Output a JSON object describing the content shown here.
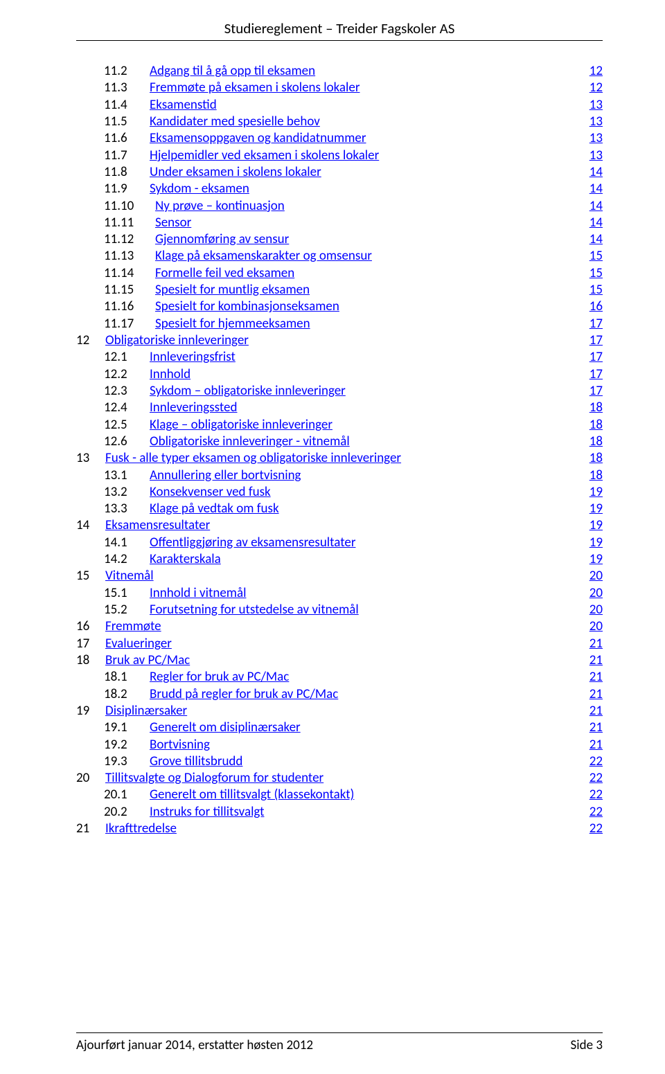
{
  "header_title": "Studiereglement – Treider Fagskoler AS",
  "footer_left": "Ajourført januar 2014, erstatter høsten 2012",
  "footer_right": "Side 3",
  "link_color": "#0000ff",
  "text_color": "#000000",
  "background_color": "#ffffff",
  "font_family": "Calibri",
  "font_size_body": 19,
  "font_size_header": 21,
  "toc": [
    {
      "num": "11.2",
      "label": "Adgang til å gå opp til eksamen",
      "page": "12",
      "level": 1
    },
    {
      "num": "11.3",
      "label": "Fremmøte på eksamen i skolens lokaler",
      "page": "12",
      "level": 1
    },
    {
      "num": "11.4",
      "label": "Eksamenstid",
      "page": "13",
      "level": 1
    },
    {
      "num": "11.5",
      "label": "Kandidater med spesielle behov",
      "page": "13",
      "level": 1
    },
    {
      "num": "11.6",
      "label": "Eksamensoppgaven og kandidatnummer",
      "page": "13",
      "level": 1
    },
    {
      "num": "11.7",
      "label": "Hjelpemidler ved eksamen i skolens lokaler",
      "page": "13",
      "level": 1
    },
    {
      "num": "11.8",
      "label": "Under eksamen i skolens lokaler",
      "page": "14",
      "level": 1
    },
    {
      "num": "11.9",
      "label": "Sykdom - eksamen",
      "page": "14",
      "level": 1
    },
    {
      "num": "11.10",
      "label": "Ny prøve – kontinuasjon",
      "page": "14",
      "level": 2
    },
    {
      "num": "11.11",
      "label": "Sensor",
      "page": "14",
      "level": 2
    },
    {
      "num": "11.12",
      "label": "Gjennomføring av sensur",
      "page": "14",
      "level": 2
    },
    {
      "num": "11.13",
      "label": "Klage på eksamenskarakter og omsensur",
      "page": "15",
      "level": 2
    },
    {
      "num": "11.14",
      "label": "Formelle feil ved eksamen",
      "page": "15",
      "level": 2
    },
    {
      "num": "11.15",
      "label": "Spesielt for muntlig eksamen",
      "page": "15",
      "level": 2
    },
    {
      "num": "11.16",
      "label": "Spesielt for kombinasjonseksamen",
      "page": "16",
      "level": 2
    },
    {
      "num": "11.17",
      "label": "Spesielt for hjemmeeksamen",
      "page": "17",
      "level": 2
    },
    {
      "num": "12",
      "label": "Obligatoriske innleveringer",
      "page": "17",
      "level": 0
    },
    {
      "num": "12.1",
      "label": "Innleveringsfrist",
      "page": "17",
      "level": 1
    },
    {
      "num": "12.2",
      "label": "Innhold",
      "page": "17",
      "level": 1
    },
    {
      "num": "12.3",
      "label": "Sykdom – obligatoriske innleveringer",
      "page": "17",
      "level": 1
    },
    {
      "num": "12.4",
      "label": "Innleveringssted",
      "page": "18",
      "level": 1
    },
    {
      "num": "12.5",
      "label": "Klage – obligatoriske innleveringer",
      "page": "18",
      "level": 1
    },
    {
      "num": "12.6",
      "label": "Obligatoriske innleveringer - vitnemål",
      "page": "18",
      "level": 1
    },
    {
      "num": "13",
      "label": "Fusk - alle typer eksamen og obligatoriske innleveringer",
      "page": "18",
      "level": 0
    },
    {
      "num": "13.1",
      "label": "Annullering eller bortvisning",
      "page": "18",
      "level": 1
    },
    {
      "num": "13.2",
      "label": "Konsekvenser ved fusk",
      "page": "19",
      "level": 1
    },
    {
      "num": "13.3",
      "label": "Klage på vedtak om fusk",
      "page": "19",
      "level": 1
    },
    {
      "num": "14",
      "label": "Eksamensresultater",
      "page": "19",
      "level": 0
    },
    {
      "num": "14.1",
      "label": "Offentliggjøring av eksamensresultater",
      "page": "19",
      "level": 1
    },
    {
      "num": "14.2",
      "label": "Karakterskala",
      "page": "19",
      "level": 1
    },
    {
      "num": "15",
      "label": "Vitnemål",
      "page": "20",
      "level": 0
    },
    {
      "num": "15.1",
      "label": "Innhold i vitnemål",
      "page": "20",
      "level": 1
    },
    {
      "num": "15.2",
      "label": "Forutsetning for utstedelse av vitnemål",
      "page": "20",
      "level": 1
    },
    {
      "num": "16",
      "label": "Fremmøte",
      "page": "20",
      "level": 0
    },
    {
      "num": "17",
      "label": "Evalueringer",
      "page": "21",
      "level": 0
    },
    {
      "num": "18",
      "label": "Bruk av PC/Mac",
      "page": "21",
      "level": 0
    },
    {
      "num": "18.1",
      "label": "Regler for bruk av PC/Mac",
      "page": "21",
      "level": 1
    },
    {
      "num": "18.2",
      "label": "Brudd på regler for bruk av PC/Mac",
      "page": "21",
      "level": 1
    },
    {
      "num": "19",
      "label": "Disiplinærsaker",
      "page": "21",
      "level": 0
    },
    {
      "num": "19.1",
      "label": "Generelt om disiplinærsaker",
      "page": "21",
      "level": 1
    },
    {
      "num": "19.2",
      "label": "Bortvisning",
      "page": "21",
      "level": 1
    },
    {
      "num": "19.3",
      "label": "Grove tillitsbrudd",
      "page": "22",
      "level": 1
    },
    {
      "num": "20",
      "label": "Tillitsvalgte og Dialogforum for studenter",
      "page": "22",
      "level": 0
    },
    {
      "num": "20.1",
      "label": "Generelt om tillitsvalgt (klassekontakt)",
      "page": "22",
      "level": 1
    },
    {
      "num": "20.2",
      "label": "Instruks for tillitsvalgt",
      "page": "22",
      "level": 1
    },
    {
      "num": "21",
      "label": "Ikrafttredelse",
      "page": "22",
      "level": 0
    }
  ]
}
